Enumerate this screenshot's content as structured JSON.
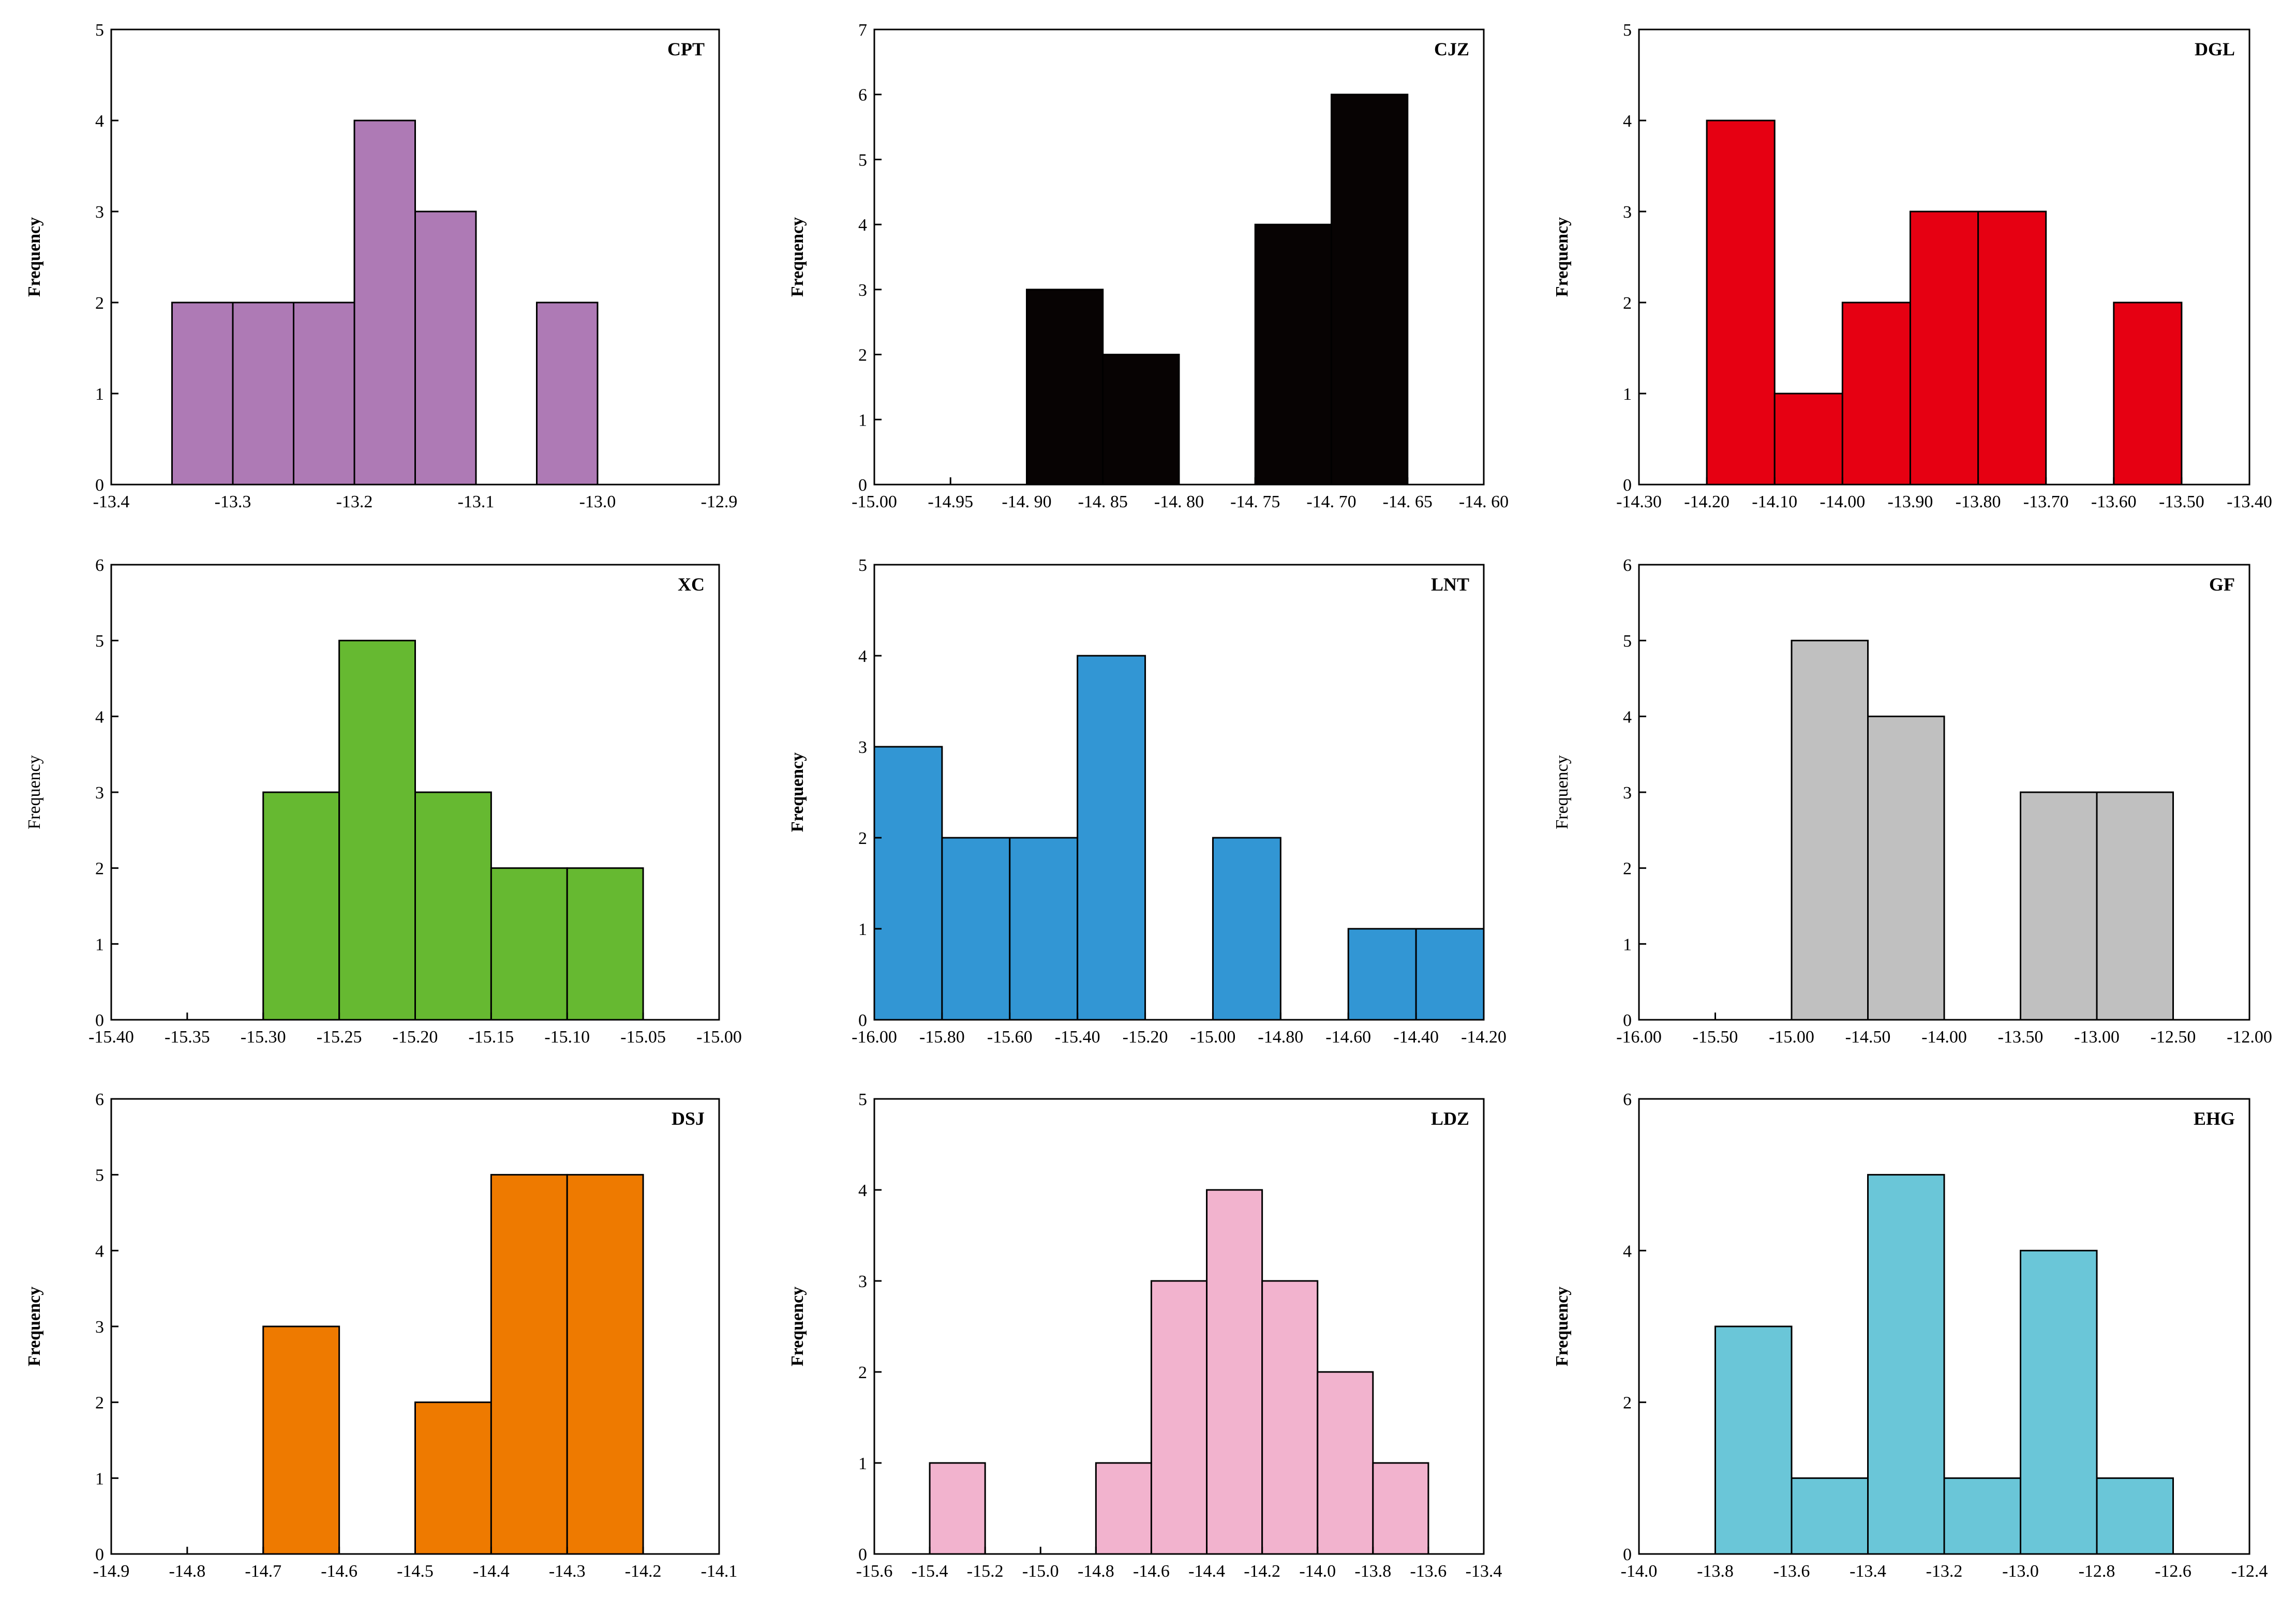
{
  "chart_data": [
    {
      "type": "bar",
      "title": "CPT",
      "ylabel": "Frequency",
      "xlabel": "",
      "color": "#ae7ab5",
      "xlim": [
        -13.4,
        -12.9
      ],
      "ylim": [
        0,
        5
      ],
      "xticks": [
        -13.4,
        -13.3,
        -13.2,
        -13.1,
        -13.0,
        -12.9
      ],
      "xtick_labels": [
        "-13.4",
        "-13.3",
        "-13.2",
        "-13.1",
        "-13.0",
        "-12.9"
      ],
      "yticks": [
        0,
        1,
        2,
        3,
        4,
        5
      ],
      "ytick_labels": [
        "0",
        "1",
        "2",
        "3",
        "4",
        "5"
      ],
      "bins": [
        {
          "start": -13.35,
          "end": -13.3,
          "value": 2
        },
        {
          "start": -13.3,
          "end": -13.25,
          "value": 2
        },
        {
          "start": -13.25,
          "end": -13.2,
          "value": 2
        },
        {
          "start": -13.2,
          "end": -13.15,
          "value": 4
        },
        {
          "start": -13.15,
          "end": -13.1,
          "value": 3
        },
        {
          "start": -13.05,
          "end": -13.0,
          "value": 2
        }
      ]
    },
    {
      "type": "bar",
      "title": "CJZ",
      "ylabel": "Frequency",
      "xlabel": "",
      "color": "#070303",
      "xlim": [
        -15.0,
        -14.6
      ],
      "ylim": [
        0,
        7
      ],
      "xticks": [
        -15.0,
        -14.95,
        -14.9,
        -14.85,
        -14.8,
        -14.75,
        -14.7,
        -14.65,
        -14.6
      ],
      "xtick_labels": [
        "-15.00",
        "-14.95",
        "-14. 90",
        "-14. 85",
        "-14. 80",
        "-14. 75",
        "-14. 70",
        "-14. 65",
        "-14. 60"
      ],
      "yticks": [
        0,
        1,
        2,
        3,
        4,
        5,
        6,
        7
      ],
      "ytick_labels": [
        "0",
        "1",
        "2",
        "3",
        "4",
        "5",
        "6",
        "7"
      ],
      "bins": [
        {
          "start": -14.9,
          "end": -14.85,
          "value": 3
        },
        {
          "start": -14.85,
          "end": -14.8,
          "value": 2
        },
        {
          "start": -14.75,
          "end": -14.7,
          "value": 4
        },
        {
          "start": -14.7,
          "end": -14.65,
          "value": 6
        }
      ]
    },
    {
      "type": "bar",
      "title": "DGL",
      "ylabel": "Frequency",
      "xlabel": "",
      "color": "#e60012",
      "xlim": [
        -14.3,
        -13.4
      ],
      "ylim": [
        0,
        5
      ],
      "xticks": [
        -14.3,
        -14.2,
        -14.1,
        -14.0,
        -13.9,
        -13.8,
        -13.7,
        -13.6,
        -13.5,
        -13.4
      ],
      "xtick_labels": [
        "-14.30",
        "-14.20",
        "-14.10",
        "-14.00",
        "-13.90",
        "-13.80",
        "-13.70",
        "-13.60",
        "-13.50",
        "-13.40"
      ],
      "yticks": [
        0,
        1,
        2,
        3,
        4,
        5
      ],
      "ytick_labels": [
        "0",
        "1",
        "2",
        "3",
        "4",
        "5"
      ],
      "bins": [
        {
          "start": -14.2,
          "end": -14.1,
          "value": 4
        },
        {
          "start": -14.1,
          "end": -14.0,
          "value": 1
        },
        {
          "start": -14.0,
          "end": -13.9,
          "value": 2
        },
        {
          "start": -13.9,
          "end": -13.8,
          "value": 3
        },
        {
          "start": -13.8,
          "end": -13.7,
          "value": 3
        },
        {
          "start": -13.6,
          "end": -13.5,
          "value": 2
        }
      ]
    },
    {
      "type": "bar",
      "title": "XC",
      "ylabel": "Frequency",
      "xlabel": "",
      "color": "#66b931",
      "xlim": [
        -15.4,
        -15.0
      ],
      "ylim": [
        0,
        6
      ],
      "xticks": [
        -15.4,
        -15.35,
        -15.3,
        -15.25,
        -15.2,
        -15.15,
        -15.1,
        -15.05,
        -15.0
      ],
      "xtick_labels": [
        "-15.40",
        "-15.35",
        "-15.30",
        "-15.25",
        "-15.20",
        "-15.15",
        "-15.10",
        "-15.05",
        "-15.00"
      ],
      "yticks": [
        0,
        1,
        2,
        3,
        4,
        5,
        6
      ],
      "ytick_labels": [
        "0",
        "1",
        "2",
        "3",
        "4",
        "5",
        "6"
      ],
      "bins": [
        {
          "start": -15.3,
          "end": -15.25,
          "value": 3
        },
        {
          "start": -15.25,
          "end": -15.2,
          "value": 5
        },
        {
          "start": -15.2,
          "end": -15.15,
          "value": 3
        },
        {
          "start": -15.15,
          "end": -15.1,
          "value": 2
        },
        {
          "start": -15.1,
          "end": -15.05,
          "value": 2
        }
      ]
    },
    {
      "type": "bar",
      "title": "LNT",
      "ylabel": "Frequency",
      "xlabel": "",
      "color": "#3296d4",
      "xlim": [
        -16.0,
        -14.2
      ],
      "ylim": [
        0,
        5
      ],
      "xticks": [
        -16.0,
        -15.8,
        -15.6,
        -15.4,
        -15.2,
        -15.0,
        -14.8,
        -14.6,
        -14.4,
        -14.2
      ],
      "xtick_labels": [
        "-16.00",
        "-15.80",
        "-15.60",
        "-15.40",
        "-15.20",
        "-15.00",
        "-14.80",
        "-14.60",
        "-14.40",
        "-14.20"
      ],
      "yticks": [
        0,
        1,
        2,
        3,
        4,
        5
      ],
      "ytick_labels": [
        "0",
        "1",
        "2",
        "3",
        "4",
        "5"
      ],
      "bins": [
        {
          "start": -16.0,
          "end": -15.8,
          "value": 3
        },
        {
          "start": -15.8,
          "end": -15.6,
          "value": 2
        },
        {
          "start": -15.6,
          "end": -15.4,
          "value": 2
        },
        {
          "start": -15.4,
          "end": -15.2,
          "value": 4
        },
        {
          "start": -15.0,
          "end": -14.8,
          "value": 2
        },
        {
          "start": -14.6,
          "end": -14.4,
          "value": 1
        },
        {
          "start": -14.4,
          "end": -14.2,
          "value": 1
        }
      ]
    },
    {
      "type": "bar",
      "title": "GF",
      "ylabel": "Frequency",
      "xlabel": "",
      "color": "#c0c0c0",
      "xlim": [
        -16.0,
        -12.0
      ],
      "ylim": [
        0,
        6
      ],
      "xticks": [
        -16.0,
        -15.5,
        -15.0,
        -14.5,
        -14.0,
        -13.5,
        -13.0,
        -12.5,
        -12.0
      ],
      "xtick_labels": [
        "-16.00",
        "-15.50",
        "-15.00",
        "-14.50",
        "-14.00",
        "-13.50",
        "-13.00",
        "-12.50",
        "-12.00"
      ],
      "yticks": [
        0,
        1,
        2,
        3,
        4,
        5,
        6
      ],
      "ytick_labels": [
        "0",
        "1",
        "2",
        "3",
        "4",
        "5",
        "6"
      ],
      "bins": [
        {
          "start": -15.0,
          "end": -14.5,
          "value": 5
        },
        {
          "start": -14.5,
          "end": -14.0,
          "value": 4
        },
        {
          "start": -13.5,
          "end": -13.0,
          "value": 3
        },
        {
          "start": -13.0,
          "end": -12.5,
          "value": 3
        }
      ]
    },
    {
      "type": "bar",
      "title": "DSJ",
      "ylabel": "Frequency",
      "xlabel": "",
      "color": "#ee7a00",
      "xlim": [
        -14.9,
        -14.1
      ],
      "ylim": [
        0,
        6
      ],
      "xticks": [
        -14.9,
        -14.8,
        -14.7,
        -14.6,
        -14.5,
        -14.4,
        -14.3,
        -14.2,
        -14.1
      ],
      "xtick_labels": [
        "-14.9",
        "-14.8",
        "-14.7",
        "-14.6",
        "-14.5",
        "-14.4",
        "-14.3",
        "-14.2",
        "-14.1"
      ],
      "yticks": [
        0,
        1,
        2,
        3,
        4,
        5,
        6
      ],
      "ytick_labels": [
        "0",
        "1",
        "2",
        "3",
        "4",
        "5",
        "6"
      ],
      "bins": [
        {
          "start": -14.7,
          "end": -14.6,
          "value": 3
        },
        {
          "start": -14.5,
          "end": -14.4,
          "value": 2
        },
        {
          "start": -14.4,
          "end": -14.3,
          "value": 5
        },
        {
          "start": -14.3,
          "end": -14.2,
          "value": 5
        }
      ]
    },
    {
      "type": "bar",
      "title": "LDZ",
      "ylabel": "Frequency",
      "xlabel": "",
      "color": "#f2b3ce",
      "xlim": [
        -15.6,
        -13.4
      ],
      "ylim": [
        0,
        5
      ],
      "xticks": [
        -15.6,
        -15.4,
        -15.2,
        -15.0,
        -14.8,
        -14.6,
        -14.4,
        -14.2,
        -14.0,
        -13.8,
        -13.6,
        -13.4
      ],
      "xtick_labels": [
        "-15.6",
        "-15.4",
        "-15.2",
        "-15.0",
        "-14.8",
        "-14.6",
        "-14.4",
        "-14.2",
        "-14.0",
        "-13.8",
        "-13.6",
        "-13.4"
      ],
      "yticks": [
        0,
        1,
        2,
        3,
        4,
        5
      ],
      "ytick_labels": [
        "0",
        "1",
        "2",
        "3",
        "4",
        "5"
      ],
      "bins": [
        {
          "start": -15.4,
          "end": -15.2,
          "value": 1
        },
        {
          "start": -14.8,
          "end": -14.6,
          "value": 1
        },
        {
          "start": -14.6,
          "end": -14.4,
          "value": 3
        },
        {
          "start": -14.4,
          "end": -14.2,
          "value": 4
        },
        {
          "start": -14.2,
          "end": -14.0,
          "value": 3
        },
        {
          "start": -14.0,
          "end": -13.8,
          "value": 2
        },
        {
          "start": -13.8,
          "end": -13.6,
          "value": 1
        }
      ]
    },
    {
      "type": "bar",
      "title": "EHG",
      "ylabel": "Frequency",
      "xlabel": "",
      "color": "#6ac6d8",
      "xlim": [
        -14.0,
        -12.4
      ],
      "ylim": [
        0,
        6
      ],
      "xticks": [
        -14.0,
        -13.8,
        -13.6,
        -13.4,
        -13.2,
        -13.0,
        -12.8,
        -12.6,
        -12.4
      ],
      "xtick_labels": [
        "-14.0",
        "-13.8",
        "-13.6",
        "-13.4",
        "-13.2",
        "-13.0",
        "-12.8",
        "-12.6",
        "-12.4"
      ],
      "yticks": [
        0,
        2,
        4,
        6
      ],
      "ytick_labels": [
        "0",
        "2",
        "4",
        "6"
      ],
      "bins": [
        {
          "start": -13.8,
          "end": -13.6,
          "value": 3
        },
        {
          "start": -13.6,
          "end": -13.4,
          "value": 1
        },
        {
          "start": -13.4,
          "end": -13.2,
          "value": 5
        },
        {
          "start": -13.2,
          "end": -13.0,
          "value": 1
        },
        {
          "start": -13.0,
          "end": -12.8,
          "value": 4
        },
        {
          "start": -12.8,
          "end": -12.6,
          "value": 1
        }
      ]
    }
  ]
}
